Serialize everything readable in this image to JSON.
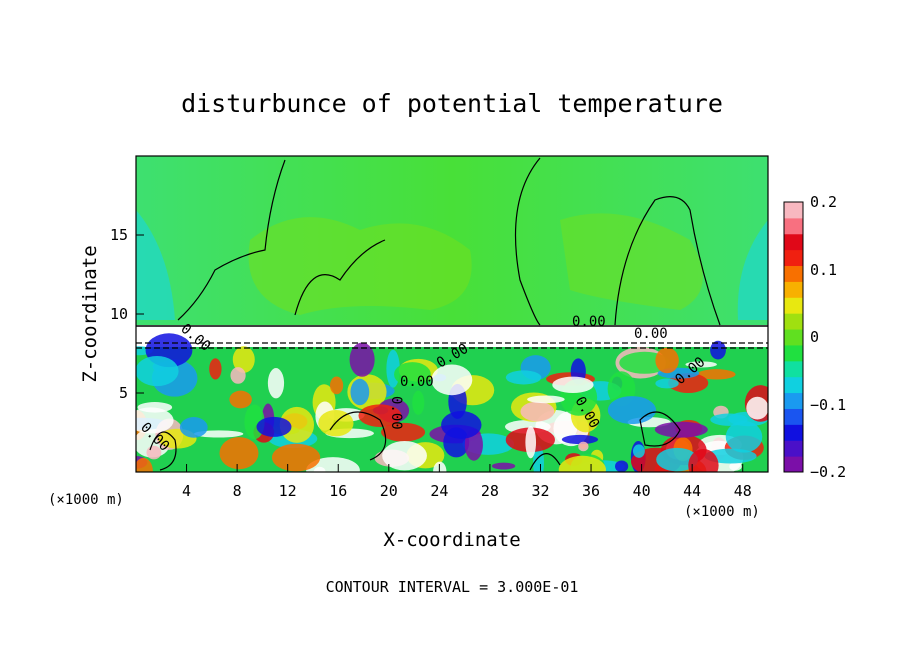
{
  "chart_data": {
    "type": "heatmap",
    "title": "disturbunce of potential temperature",
    "xlabel": "X-coordinate",
    "ylabel": "Z-coordinate",
    "x_unit": "(×1000 m)",
    "y_unit": "(×1000 m)",
    "xlim": [
      0,
      50
    ],
    "ylim": [
      0,
      20
    ],
    "x_ticks": [
      4,
      8,
      12,
      16,
      20,
      24,
      28,
      32,
      36,
      40,
      44,
      48
    ],
    "y_ticks": [
      5,
      10,
      15
    ],
    "colorbar": {
      "range": [
        -0.2,
        0.2
      ],
      "ticks": [
        "0.2",
        "0.1",
        "0",
        "−0.1",
        "−0.2"
      ],
      "colors": [
        "#7b0fa8",
        "#4a10c8",
        "#1010e0",
        "#1a55f0",
        "#1a9af0",
        "#10d0e0",
        "#10e0a0",
        "#20e040",
        "#60e020",
        "#a0e010",
        "#e8e810",
        "#f8b000",
        "#f87000",
        "#f02010",
        "#e00818",
        "#f87080",
        "#f8b8c0"
      ]
    },
    "contour_labels": [
      "0.00",
      "0.00",
      "0.00",
      "0.00",
      "0.00",
      "0.00",
      "0.00",
      "0.00",
      "0.00"
    ],
    "footer": "CONTOUR INTERVAL = 3.000E-01"
  }
}
